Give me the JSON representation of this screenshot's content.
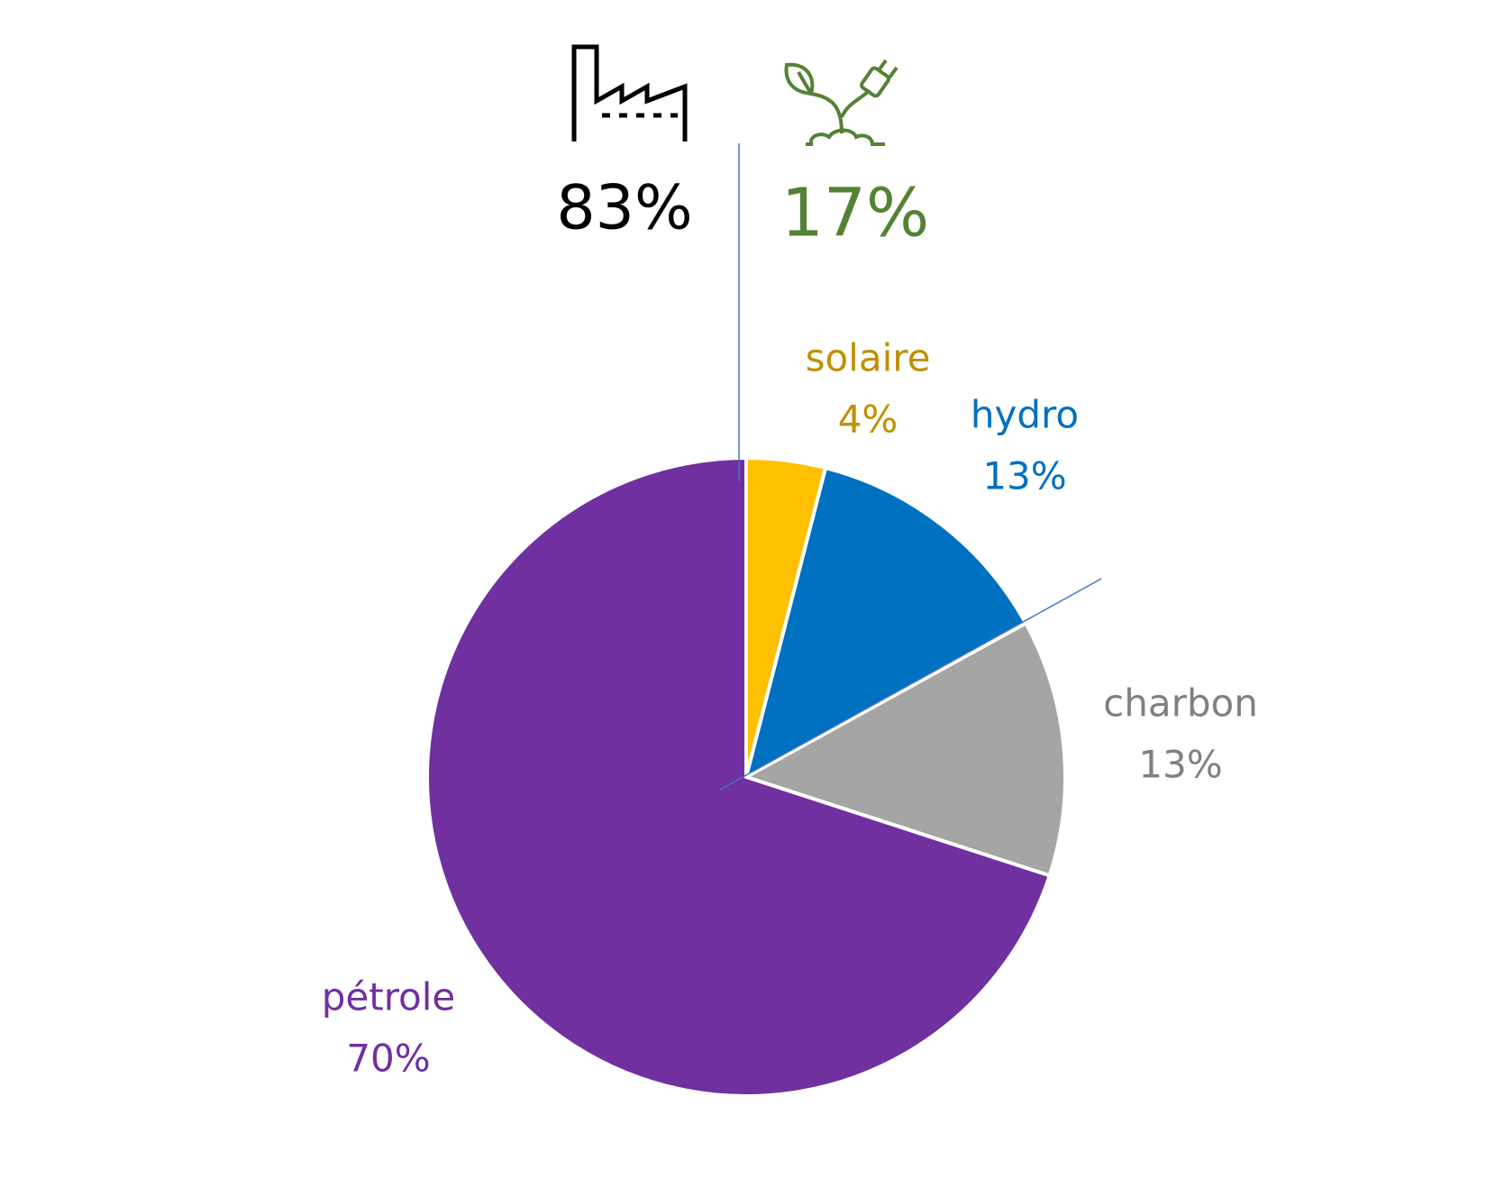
{
  "chart_data": {
    "type": "pie",
    "categories": [
      "solaire",
      "hydro",
      "charbon",
      "pétrole"
    ],
    "values": [
      4,
      13,
      13,
      70
    ],
    "value_labels": [
      "4%",
      "13%",
      "13%",
      "70%"
    ],
    "colors": [
      "#FFC000",
      "#0070C0",
      "#A5A5A5",
      "#7030A0"
    ],
    "label_colors": [
      "#BF9000",
      "#0070C0",
      "#808080",
      "#7030A0"
    ],
    "annotations": [
      {
        "text": "83%",
        "color": "#000000"
      },
      {
        "text": "17%",
        "color": "#548235"
      }
    ]
  }
}
